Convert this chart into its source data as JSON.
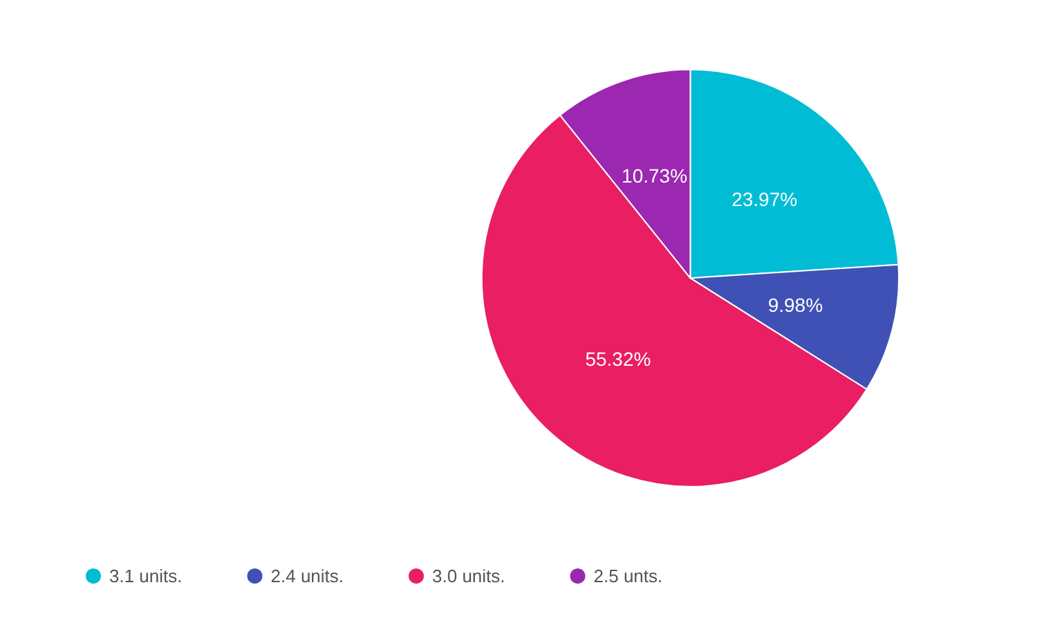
{
  "chart_data": {
    "type": "pie",
    "categories": [
      "3.1 units.",
      "2.4 units.",
      "3.0 units.",
      "2.5 unts."
    ],
    "values": [
      23.97,
      9.98,
      55.32,
      10.73
    ],
    "colors": [
      "#00bcd4",
      "#3f51b5",
      "#e91e63",
      "#9c27b0"
    ],
    "value_labels": [
      "23.97%",
      "9.98%",
      "55.32%",
      "10.73%"
    ],
    "legend": "bottom"
  }
}
